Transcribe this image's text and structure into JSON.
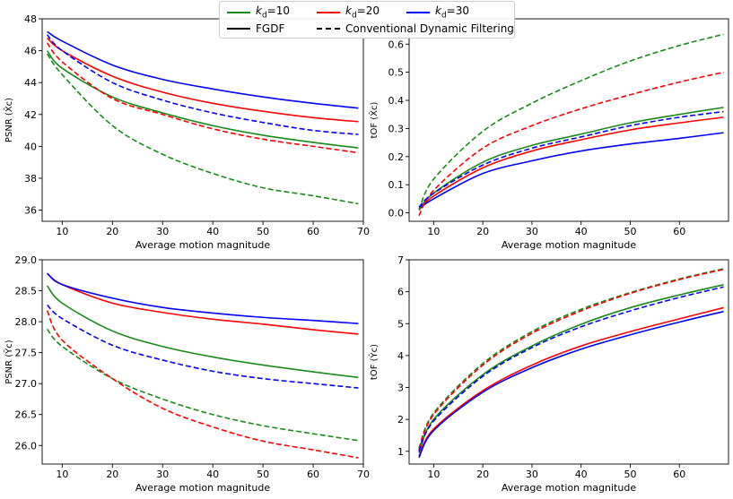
{
  "legend": {
    "items": [
      {
        "label_main": "k",
        "label_sub": "d",
        "label_rest": "=10",
        "color": "#1a8a1a",
        "style": "solid"
      },
      {
        "label_main": "k",
        "label_sub": "d",
        "label_rest": "=20",
        "color": "#ff0000",
        "style": "solid"
      },
      {
        "label_main": "k",
        "label_sub": "d",
        "label_rest": "=30",
        "color": "#0000ff",
        "style": "solid"
      },
      {
        "label_main": "FGDF",
        "label_sub": "",
        "label_rest": "",
        "color": "#000000",
        "style": "solid"
      },
      {
        "label_main": "Conventional Dynamic Filtering",
        "label_sub": "",
        "label_rest": "",
        "color": "#000000",
        "style": "dashed"
      }
    ]
  },
  "colors": {
    "kd10": "#1a8a1a",
    "kd20": "#ff0000",
    "kd30": "#0000ff"
  },
  "chart_data": [
    {
      "type": "line",
      "id": "top-left",
      "xlabel": "Average motion magnitude",
      "ylabel": "PSNR (X̂c)",
      "xlim": [
        6,
        70
      ],
      "ylim": [
        35.3,
        48
      ],
      "xticks": [
        10,
        20,
        30,
        40,
        50,
        60,
        70
      ],
      "yticks": [
        36,
        38,
        40,
        42,
        44,
        46,
        48
      ],
      "series": [
        {
          "name": "kd=10 FGDF",
          "color": "#1a8a1a",
          "style": "solid",
          "x": [
            7,
            10,
            20,
            30,
            40,
            50,
            60,
            69
          ],
          "y": [
            46.0,
            44.9,
            43.1,
            42.1,
            41.3,
            40.7,
            40.25,
            39.9
          ]
        },
        {
          "name": "kd=20 FGDF",
          "color": "#ff0000",
          "style": "solid",
          "x": [
            7,
            10,
            20,
            30,
            40,
            50,
            60,
            69
          ],
          "y": [
            46.8,
            46.0,
            44.4,
            43.4,
            42.7,
            42.2,
            41.8,
            41.55
          ]
        },
        {
          "name": "kd=30 FGDF",
          "color": "#0000ff",
          "style": "solid",
          "x": [
            7,
            10,
            20,
            30,
            40,
            50,
            60,
            69
          ],
          "y": [
            47.2,
            46.6,
            45.1,
            44.2,
            43.6,
            43.1,
            42.7,
            42.4
          ]
        },
        {
          "name": "kd=10 Conventional",
          "color": "#1a8a1a",
          "style": "dashed",
          "x": [
            7,
            10,
            20,
            30,
            40,
            50,
            60,
            69
          ],
          "y": [
            45.8,
            44.5,
            41.3,
            39.5,
            38.3,
            37.4,
            36.9,
            36.4
          ]
        },
        {
          "name": "kd=20 Conventional",
          "color": "#ff0000",
          "style": "dashed",
          "x": [
            7,
            10,
            20,
            30,
            40,
            50,
            60,
            69
          ],
          "y": [
            46.5,
            45.3,
            43.0,
            42.0,
            41.1,
            40.45,
            40.0,
            39.6
          ]
        },
        {
          "name": "kd=30 Conventional",
          "color": "#0000ff",
          "style": "dashed",
          "x": [
            7,
            10,
            20,
            30,
            40,
            50,
            60,
            69
          ],
          "y": [
            47.0,
            46.0,
            44.0,
            42.9,
            42.1,
            41.5,
            41.0,
            40.75
          ]
        }
      ]
    },
    {
      "type": "line",
      "id": "top-right",
      "xlabel": "Average motion magnitude",
      "ylabel": "tOF (X̂c)",
      "xlim": [
        5,
        70
      ],
      "ylim": [
        -0.03,
        0.69
      ],
      "xticks": [
        10,
        20,
        30,
        40,
        50,
        60
      ],
      "yticks": [
        0.0,
        0.1,
        0.2,
        0.3,
        0.4,
        0.5,
        0.6
      ],
      "series": [
        {
          "name": "kd=10 FGDF",
          "color": "#1a8a1a",
          "style": "solid",
          "x": [
            7,
            10,
            20,
            30,
            40,
            50,
            60,
            69
          ],
          "y": [
            0.01,
            0.07,
            0.18,
            0.24,
            0.28,
            0.32,
            0.35,
            0.375
          ]
        },
        {
          "name": "kd=20 FGDF",
          "color": "#ff0000",
          "style": "solid",
          "x": [
            7,
            10,
            20,
            30,
            40,
            50,
            60,
            69
          ],
          "y": [
            0.01,
            0.06,
            0.16,
            0.22,
            0.26,
            0.295,
            0.32,
            0.34
          ]
        },
        {
          "name": "kd=30 FGDF",
          "color": "#0000ff",
          "style": "solid",
          "x": [
            7,
            10,
            20,
            30,
            40,
            50,
            60,
            69
          ],
          "y": [
            0.015,
            0.05,
            0.14,
            0.185,
            0.22,
            0.245,
            0.265,
            0.285
          ]
        },
        {
          "name": "kd=10 Conventional",
          "color": "#1a8a1a",
          "style": "dashed",
          "x": [
            7,
            10,
            20,
            30,
            40,
            50,
            60,
            69
          ],
          "y": [
            0.01,
            0.12,
            0.29,
            0.39,
            0.47,
            0.54,
            0.595,
            0.635
          ]
        },
        {
          "name": "kd=20 Conventional",
          "color": "#ff0000",
          "style": "dashed",
          "x": [
            7,
            10,
            20,
            30,
            40,
            50,
            60,
            69
          ],
          "y": [
            -0.01,
            0.08,
            0.23,
            0.31,
            0.37,
            0.42,
            0.465,
            0.5
          ]
        },
        {
          "name": "kd=30 Conventional",
          "color": "#0000ff",
          "style": "dashed",
          "x": [
            7,
            10,
            20,
            30,
            40,
            50,
            60,
            69
          ],
          "y": [
            0.02,
            0.07,
            0.17,
            0.23,
            0.27,
            0.31,
            0.34,
            0.36
          ]
        }
      ]
    },
    {
      "type": "line",
      "id": "bottom-left",
      "xlabel": "Average motion magnitude",
      "ylabel": "PSNR (Ŷc)",
      "xlim": [
        6,
        70
      ],
      "ylim": [
        25.7,
        29.0
      ],
      "xticks": [
        10,
        20,
        30,
        40,
        50,
        60,
        70
      ],
      "yticks": [
        26.0,
        26.5,
        27.0,
        27.5,
        28.0,
        28.5,
        29.0
      ],
      "series": [
        {
          "name": "kd=10 FGDF",
          "color": "#1a8a1a",
          "style": "solid",
          "x": [
            7,
            10,
            20,
            30,
            40,
            50,
            60,
            69
          ],
          "y": [
            28.58,
            28.3,
            27.85,
            27.6,
            27.43,
            27.3,
            27.19,
            27.1
          ]
        },
        {
          "name": "kd=20 FGDF",
          "color": "#ff0000",
          "style": "solid",
          "x": [
            7,
            10,
            20,
            30,
            40,
            50,
            60,
            69
          ],
          "y": [
            28.78,
            28.6,
            28.3,
            28.15,
            28.04,
            27.96,
            27.87,
            27.8
          ]
        },
        {
          "name": "kd=30 FGDF",
          "color": "#0000ff",
          "style": "solid",
          "x": [
            7,
            10,
            20,
            30,
            40,
            50,
            60,
            69
          ],
          "y": [
            28.78,
            28.6,
            28.38,
            28.23,
            28.14,
            28.07,
            28.02,
            27.97
          ]
        },
        {
          "name": "kd=10 Conventional",
          "color": "#1a8a1a",
          "style": "dashed",
          "x": [
            7,
            10,
            20,
            30,
            40,
            50,
            60,
            69
          ],
          "y": [
            27.88,
            27.6,
            27.08,
            26.75,
            26.5,
            26.32,
            26.19,
            26.08
          ]
        },
        {
          "name": "kd=20 Conventional",
          "color": "#ff0000",
          "style": "dashed",
          "x": [
            7,
            10,
            20,
            30,
            40,
            50,
            60,
            69
          ],
          "y": [
            28.18,
            27.7,
            27.08,
            26.6,
            26.3,
            26.07,
            25.93,
            25.8
          ]
        },
        {
          "name": "kd=30 Conventional",
          "color": "#0000ff",
          "style": "dashed",
          "x": [
            7,
            10,
            20,
            30,
            40,
            50,
            60,
            69
          ],
          "y": [
            28.27,
            28.05,
            27.62,
            27.38,
            27.2,
            27.08,
            27.0,
            26.93
          ]
        }
      ]
    },
    {
      "type": "line",
      "id": "bottom-right",
      "xlabel": "Average motion magnitude",
      "ylabel": "tOF (Ŷc)",
      "xlim": [
        5,
        70
      ],
      "ylim": [
        0.6,
        7.0
      ],
      "xticks": [
        10,
        20,
        30,
        40,
        50,
        60
      ],
      "yticks": [
        1,
        2,
        3,
        4,
        5,
        6,
        7
      ],
      "series": [
        {
          "name": "kd=10 FGDF",
          "color": "#1a8a1a",
          "style": "solid",
          "x": [
            7,
            10,
            20,
            30,
            40,
            50,
            60,
            69
          ],
          "y": [
            0.95,
            2.0,
            3.4,
            4.3,
            4.98,
            5.5,
            5.9,
            6.22
          ]
        },
        {
          "name": "kd=20 FGDF",
          "color": "#ff0000",
          "style": "solid",
          "x": [
            7,
            10,
            20,
            30,
            40,
            50,
            60,
            69
          ],
          "y": [
            0.85,
            1.7,
            2.9,
            3.7,
            4.3,
            4.75,
            5.15,
            5.5
          ]
        },
        {
          "name": "kd=30 FGDF",
          "color": "#0000ff",
          "style": "solid",
          "x": [
            7,
            10,
            20,
            30,
            40,
            50,
            60,
            69
          ],
          "y": [
            0.8,
            1.65,
            2.85,
            3.62,
            4.2,
            4.65,
            5.05,
            5.38
          ]
        },
        {
          "name": "kd=10 Conventional",
          "color": "#1a8a1a",
          "style": "dashed",
          "x": [
            7,
            10,
            20,
            30,
            40,
            50,
            60,
            69
          ],
          "y": [
            1.1,
            2.2,
            3.75,
            4.75,
            5.45,
            5.97,
            6.4,
            6.72
          ]
        },
        {
          "name": "kd=20 Conventional",
          "color": "#ff0000",
          "style": "dashed",
          "x": [
            7,
            10,
            20,
            30,
            40,
            50,
            60,
            69
          ],
          "y": [
            1.05,
            2.15,
            3.7,
            4.7,
            5.4,
            5.95,
            6.38,
            6.7
          ]
        },
        {
          "name": "kd=30 Conventional",
          "color": "#0000ff",
          "style": "dashed",
          "x": [
            7,
            10,
            20,
            30,
            40,
            50,
            60,
            69
          ],
          "y": [
            1.0,
            1.95,
            3.35,
            4.25,
            4.9,
            5.4,
            5.82,
            6.15
          ]
        }
      ]
    }
  ]
}
